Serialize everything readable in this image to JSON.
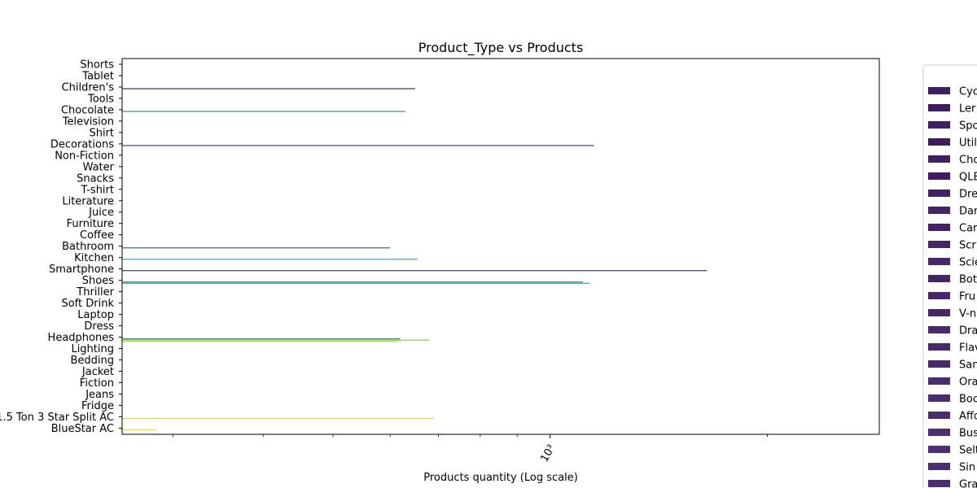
{
  "chart_data": {
    "type": "bar",
    "orientation": "horizontal",
    "title": "Product_Type vs Products",
    "xlabel": "Products quantity (Log scale)",
    "ylabel": "",
    "x_scale": "log",
    "xlim": [
      255,
      2860
    ],
    "x_major_tick": {
      "value": 1000,
      "label": "10³"
    },
    "x_minor_ticks": [
      300,
      400,
      500,
      600,
      700,
      800,
      900,
      2000
    ],
    "grid": false,
    "legend_placement": "right, outside plot",
    "categories": [
      "Shorts",
      "Tablet",
      "Children's",
      "Tools",
      "Chocolate",
      "Television",
      "Shirt",
      "Decorations",
      "Non-Fiction",
      "Water",
      "Snacks",
      "T-shirt",
      "Literature",
      "Juice",
      "Furniture",
      "Coffee",
      "Bathroom",
      "Kitchen",
      "Smartphone",
      "Shoes",
      "Thriller",
      "Soft Drink",
      "Laptop",
      "Dress",
      "Headphones",
      "Lighting",
      "Bedding",
      "Jacket",
      "Fiction",
      "Jeans",
      "Fridge",
      "1.5 Ton 3 Star Split AC",
      "BlueStar AC"
    ],
    "bars": [
      {
        "category": "Children's",
        "value": 650,
        "color": "#3b2c6e"
      },
      {
        "category": "Chocolate",
        "value": 630,
        "color": "#2f8e8c"
      },
      {
        "category": "Decorations",
        "value": 1150,
        "color": "#424086"
      },
      {
        "category": "Bathroom",
        "value": 600,
        "color": "#3b5b8a"
      },
      {
        "category": "Kitchen",
        "value": 655,
        "color": "#3aa88b"
      },
      {
        "category": "Smartphone",
        "value": 1650,
        "color": "#3e3a70"
      },
      {
        "category": "Shoes",
        "value": 1110,
        "color": "#1f8a86"
      },
      {
        "category": "Shoes",
        "value": 1135,
        "color": "#3fa58a"
      },
      {
        "category": "Headphones",
        "value": 620,
        "color": "#3f6b96"
      },
      {
        "category": "Headphones",
        "value": 680,
        "color": "#7ccf4a"
      },
      {
        "category": "Headphones",
        "value": 615,
        "color": "#b6d83a"
      },
      {
        "category": "1.5 Ton 3 Star Split AC",
        "value": 690,
        "color": "#d6d63c"
      },
      {
        "category": "BlueStar AC",
        "value": 285,
        "color": "#f0d836"
      }
    ],
    "legend": {
      "entries": [
        "Cyc",
        "Ler",
        "Spo",
        "Util",
        "Cho",
        "QLE",
        "Dre",
        "Dar",
        "Car",
        "Scr",
        "Scie",
        "Bot",
        "Fru",
        "V-n",
        "Dra",
        "Flav",
        "San",
        "Ora",
        "Boo",
        "Affo",
        "Bus",
        "Selt",
        "Sin",
        "Gra"
      ],
      "colors": [
        "#3e1f63",
        "#3f1b5f",
        "#421f62",
        "#3f1d5d",
        "#40205f",
        "#43195f",
        "#442363",
        "#45245f",
        "#462265",
        "#452563",
        "#462766",
        "#45255f",
        "#47276a",
        "#482769",
        "#482a6c",
        "#48296b",
        "#492b6c",
        "#482d6c",
        "#4a2d6e",
        "#4a2c6f",
        "#4b2e6f",
        "#4b2f70",
        "#4b3071",
        "#4a3070"
      ]
    }
  }
}
